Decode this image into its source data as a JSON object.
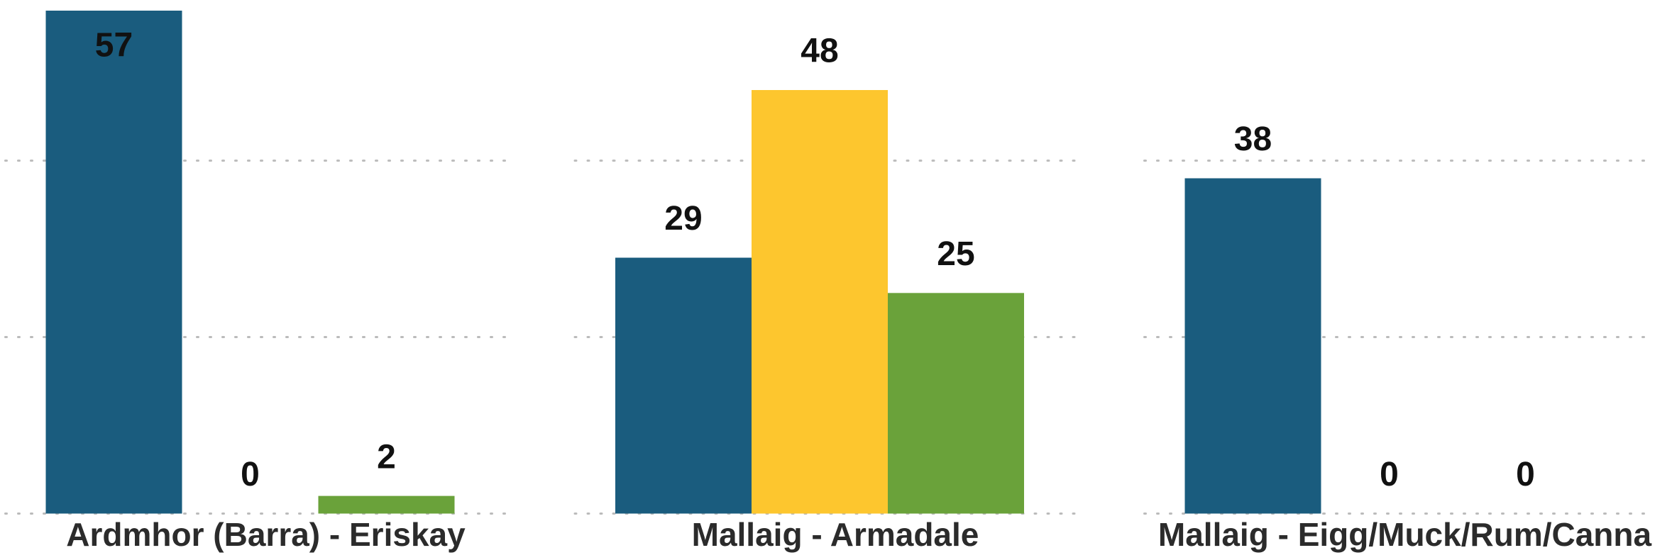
{
  "chart_data": {
    "type": "bar",
    "categories": [
      "Ardmhor (Barra) - Eriskay",
      "Mallaig - Armadale",
      "Mallaig - Eigg/Muck/Rum/Canna"
    ],
    "series": [
      {
        "color": "#1a5c7e",
        "values": [
          57,
          29,
          38
        ]
      },
      {
        "color": "#fdc62e",
        "values": [
          0,
          48,
          0
        ]
      },
      {
        "color": "#6aa23a",
        "values": [
          2,
          25,
          0
        ]
      }
    ],
    "ylim": [
      0,
      57
    ],
    "yticks": [
      0,
      20,
      40
    ],
    "grid": true
  }
}
